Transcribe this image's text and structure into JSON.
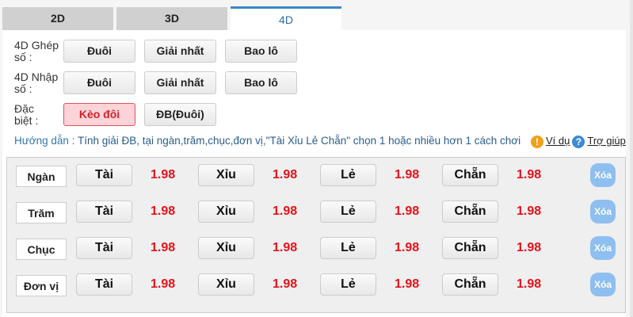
{
  "tabs": [
    {
      "label": "2D"
    },
    {
      "label": "3D"
    },
    {
      "label": "4D",
      "active": true
    }
  ],
  "options": [
    {
      "label": "4D Ghép số :",
      "buttons": [
        "Đuôi",
        "Giải nhất",
        "Bao lô"
      ]
    },
    {
      "label": "4D Nhập số :",
      "buttons": [
        "Đuôi",
        "Giải nhất",
        "Bao lô"
      ]
    },
    {
      "label": "Đặc biệt :",
      "buttons": [
        "Kèo đôi",
        "ĐB(Đuôi)"
      ],
      "selected": "Kèo đôi"
    }
  ],
  "guide": {
    "lead": "Hướng dẫn :",
    "text": "Tính giải ĐB, tại ngàn,trăm,chục,đơn vị,\"Tài Xỉu Lẻ Chẵn\" chọn 1 hoặc nhiều hơn 1 cách chơi",
    "example": "Ví dụ",
    "help": "Trợ giúp",
    "example_icon": "warning-icon",
    "help_icon": "question-icon"
  },
  "bets": {
    "rows": [
      {
        "label": "Ngàn",
        "choices": [
          {
            "label": "Tài",
            "odds": "1.98"
          },
          {
            "label": "Xỉu",
            "odds": "1.98"
          },
          {
            "label": "Lẻ",
            "odds": "1.98"
          },
          {
            "label": "Chẵn",
            "odds": "1.98"
          }
        ],
        "delete": "Xóa"
      },
      {
        "label": "Trăm",
        "choices": [
          {
            "label": "Tài",
            "odds": "1.98"
          },
          {
            "label": "Xỉu",
            "odds": "1.98"
          },
          {
            "label": "Lẻ",
            "odds": "1.98"
          },
          {
            "label": "Chẵn",
            "odds": "1.98"
          }
        ],
        "delete": "Xóa"
      },
      {
        "label": "Chục",
        "choices": [
          {
            "label": "Tài",
            "odds": "1.98"
          },
          {
            "label": "Xỉu",
            "odds": "1.98"
          },
          {
            "label": "Lẻ",
            "odds": "1.98"
          },
          {
            "label": "Chẵn",
            "odds": "1.98"
          }
        ],
        "delete": "Xóa"
      },
      {
        "label": "Đơn vị",
        "choices": [
          {
            "label": "Tài",
            "odds": "1.98"
          },
          {
            "label": "Xỉu",
            "odds": "1.98"
          },
          {
            "label": "Lẻ",
            "odds": "1.98"
          },
          {
            "label": "Chẵn",
            "odds": "1.98"
          }
        ],
        "delete": "Xóa"
      }
    ]
  },
  "colors": {
    "accent": "#3a86c4",
    "odds": "#e3121b",
    "selected": "#fcd3d7"
  }
}
